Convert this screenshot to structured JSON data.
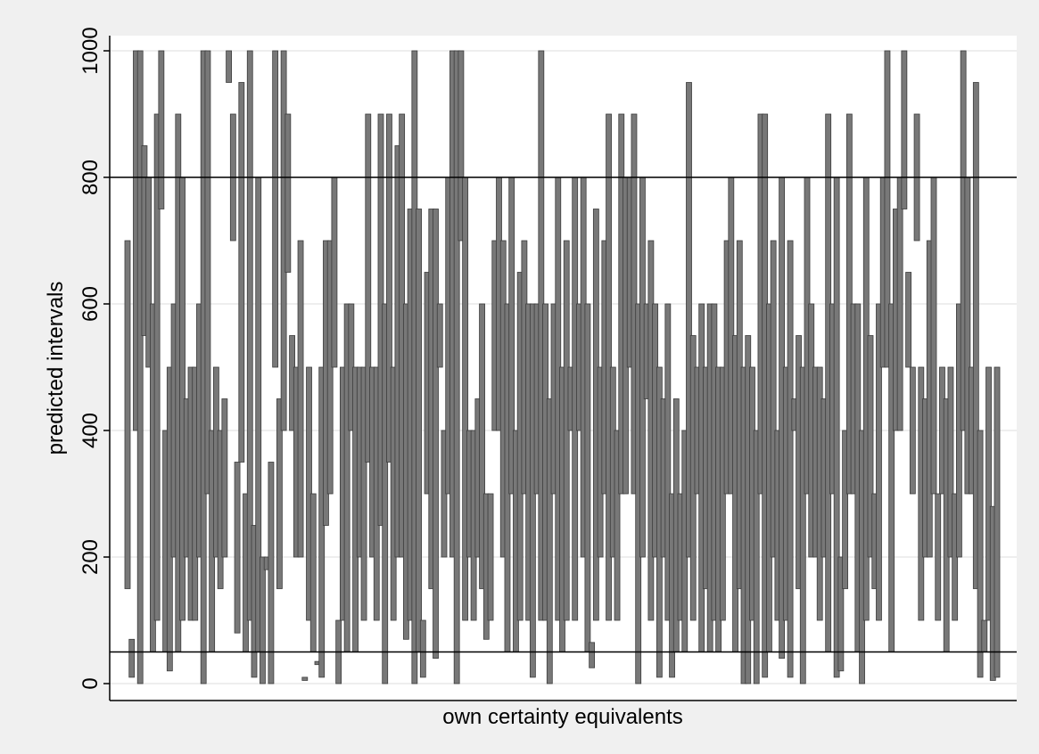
{
  "chart_data": {
    "type": "range-bar",
    "title": "",
    "xlabel": "own certainty equivalents",
    "ylabel": "predicted intervals",
    "ylim": [
      0,
      1000
    ],
    "yticks": [
      0,
      200,
      400,
      600,
      800,
      1000
    ],
    "x_tick_labels": false,
    "grid": "horizontal",
    "reference_lines": [
      50,
      800
    ],
    "colors": {
      "bar_fill": "#787878",
      "bar_edge": "#3c3c3c",
      "outer_background": "#f0f0f0",
      "plot_background": "#ffffff",
      "grid": "#e8e8e8",
      "reference_line": "#000000"
    },
    "intervals": [
      [
        150,
        700
      ],
      [
        10,
        70
      ],
      [
        400,
        1000
      ],
      [
        0,
        1000
      ],
      [
        550,
        850
      ],
      [
        500,
        800
      ],
      [
        50,
        600
      ],
      [
        100,
        900
      ],
      [
        750,
        1000
      ],
      [
        50,
        400
      ],
      [
        20,
        500
      ],
      [
        200,
        600
      ],
      [
        50,
        900
      ],
      [
        100,
        800
      ],
      [
        200,
        450
      ],
      [
        100,
        500
      ],
      [
        100,
        500
      ],
      [
        200,
        600
      ],
      [
        0,
        1000
      ],
      [
        300,
        1000
      ],
      [
        50,
        400
      ],
      [
        200,
        500
      ],
      [
        150,
        400
      ],
      [
        200,
        450
      ],
      [
        950,
        1000
      ],
      [
        700,
        900
      ],
      [
        80,
        350
      ],
      [
        350,
        950
      ],
      [
        50,
        300
      ],
      [
        100,
        1000
      ],
      [
        10,
        250
      ],
      [
        50,
        800
      ],
      [
        0,
        200
      ],
      [
        200,
        180
      ],
      [
        0,
        350
      ],
      [
        500,
        1000
      ],
      [
        150,
        450
      ],
      [
        400,
        1000
      ],
      [
        650,
        900
      ],
      [
        400,
        550
      ],
      [
        200,
        500
      ],
      [
        200,
        700
      ],
      [
        5,
        10
      ],
      [
        100,
        500
      ],
      [
        50,
        300
      ],
      [
        30,
        35
      ],
      [
        10,
        500
      ],
      [
        250,
        700
      ],
      [
        300,
        700
      ],
      [
        500,
        800
      ],
      [
        0,
        100
      ],
      [
        100,
        500
      ],
      [
        50,
        600
      ],
      [
        400,
        600
      ],
      [
        50,
        500
      ],
      [
        200,
        500
      ],
      [
        100,
        500
      ],
      [
        350,
        900
      ],
      [
        200,
        500
      ],
      [
        100,
        500
      ],
      [
        250,
        900
      ],
      [
        0,
        600
      ],
      [
        350,
        900
      ],
      [
        100,
        500
      ],
      [
        200,
        850
      ],
      [
        200,
        900
      ],
      [
        70,
        600
      ],
      [
        100,
        750
      ],
      [
        0,
        1000
      ],
      [
        50,
        750
      ],
      [
        10,
        100
      ],
      [
        300,
        650
      ],
      [
        150,
        750
      ],
      [
        40,
        750
      ],
      [
        500,
        600
      ],
      [
        200,
        400
      ],
      [
        300,
        800
      ],
      [
        200,
        1000
      ],
      [
        0,
        1000
      ],
      [
        700,
        1000
      ],
      [
        100,
        800
      ],
      [
        200,
        400
      ],
      [
        100,
        400
      ],
      [
        200,
        450
      ],
      [
        150,
        600
      ],
      [
        70,
        300
      ],
      [
        100,
        300
      ],
      [
        400,
        700
      ],
      [
        400,
        800
      ],
      [
        200,
        700
      ],
      [
        50,
        600
      ],
      [
        300,
        800
      ],
      [
        50,
        400
      ],
      [
        100,
        650
      ],
      [
        300,
        700
      ],
      [
        100,
        600
      ],
      [
        10,
        600
      ],
      [
        300,
        600
      ],
      [
        100,
        1000
      ],
      [
        100,
        600
      ],
      [
        0,
        450
      ],
      [
        300,
        600
      ],
      [
        100,
        800
      ],
      [
        50,
        500
      ],
      [
        100,
        700
      ],
      [
        400,
        500
      ],
      [
        100,
        800
      ],
      [
        400,
        600
      ],
      [
        200,
        800
      ],
      [
        50,
        600
      ],
      [
        25,
        65
      ],
      [
        100,
        750
      ],
      [
        200,
        500
      ],
      [
        300,
        700
      ],
      [
        100,
        900
      ],
      [
        200,
        500
      ],
      [
        100,
        400
      ],
      [
        300,
        900
      ],
      [
        300,
        800
      ],
      [
        500,
        800
      ],
      [
        300,
        900
      ],
      [
        0,
        600
      ],
      [
        200,
        800
      ],
      [
        450,
        600
      ],
      [
        100,
        700
      ],
      [
        200,
        600
      ],
      [
        10,
        500
      ],
      [
        200,
        450
      ],
      [
        100,
        600
      ],
      [
        10,
        300
      ],
      [
        50,
        450
      ],
      [
        100,
        300
      ],
      [
        50,
        400
      ],
      [
        200,
        950
      ],
      [
        100,
        550
      ],
      [
        300,
        500
      ],
      [
        50,
        600
      ],
      [
        150,
        500
      ],
      [
        50,
        600
      ],
      [
        100,
        600
      ],
      [
        50,
        500
      ],
      [
        100,
        500
      ],
      [
        300,
        700
      ],
      [
        300,
        800
      ],
      [
        50,
        550
      ],
      [
        150,
        700
      ],
      [
        0,
        500
      ],
      [
        0,
        550
      ],
      [
        100,
        500
      ],
      [
        0,
        400
      ],
      [
        300,
        900
      ],
      [
        10,
        900
      ],
      [
        50,
        600
      ],
      [
        200,
        700
      ],
      [
        100,
        400
      ],
      [
        40,
        800
      ],
      [
        100,
        500
      ],
      [
        10,
        700
      ],
      [
        400,
        450
      ],
      [
        150,
        550
      ],
      [
        0,
        500
      ],
      [
        300,
        800
      ],
      [
        200,
        600
      ],
      [
        200,
        500
      ],
      [
        100,
        500
      ],
      [
        200,
        450
      ],
      [
        50,
        900
      ],
      [
        300,
        600
      ],
      [
        10,
        800
      ],
      [
        20,
        200
      ],
      [
        150,
        400
      ],
      [
        300,
        900
      ],
      [
        300,
        600
      ],
      [
        50,
        600
      ],
      [
        0,
        400
      ],
      [
        100,
        800
      ],
      [
        200,
        550
      ],
      [
        150,
        300
      ],
      [
        100,
        600
      ],
      [
        500,
        800
      ],
      [
        500,
        1000
      ],
      [
        50,
        600
      ],
      [
        400,
        750
      ],
      [
        400,
        800
      ],
      [
        750,
        1000
      ],
      [
        500,
        650
      ],
      [
        300,
        500
      ],
      [
        700,
        900
      ],
      [
        100,
        500
      ],
      [
        200,
        450
      ],
      [
        200,
        700
      ],
      [
        300,
        800
      ],
      [
        100,
        300
      ],
      [
        300,
        500
      ],
      [
        50,
        450
      ],
      [
        200,
        500
      ],
      [
        100,
        300
      ],
      [
        200,
        600
      ],
      [
        400,
        1000
      ],
      [
        300,
        800
      ],
      [
        300,
        500
      ],
      [
        150,
        950
      ],
      [
        10,
        400
      ],
      [
        50,
        100
      ],
      [
        100,
        500
      ],
      [
        5,
        280
      ],
      [
        10,
        500
      ]
    ]
  },
  "page": {
    "xlabel": "own certainty equivalents",
    "ylabel": "predicted intervals"
  }
}
